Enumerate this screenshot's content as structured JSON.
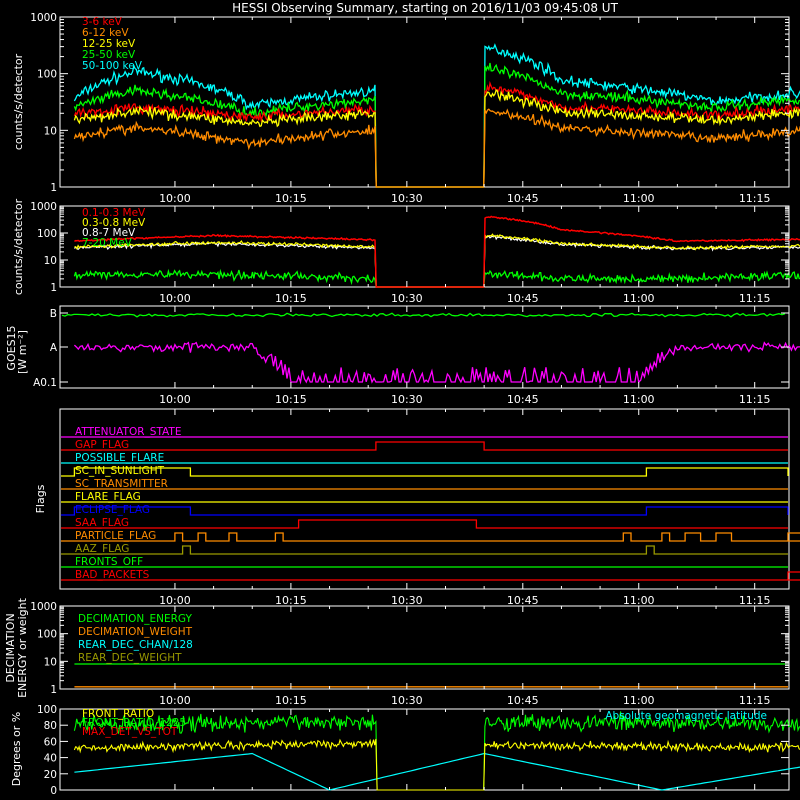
{
  "title": "HESSI Observing Summary, starting on 2016/11/03 09:45:08 UT",
  "time_ticks": [
    "10:00",
    "10:15",
    "10:30",
    "10:45",
    "11:00",
    "11:15"
  ],
  "colors": {
    "red": "#ff0000",
    "orange": "#ff8c00",
    "yellow": "#ffff00",
    "green": "#00ff00",
    "cyan": "#00ffff",
    "magenta": "#ff00ff",
    "blue": "#0000ff",
    "olive": "#9a9a00",
    "white": "#ffffff",
    "black": "#000000"
  },
  "chart_data": [
    {
      "type": "line",
      "ylabel": "counts/s/detector",
      "yscale": "log",
      "ylim": [
        1,
        1000
      ],
      "ytick_labels": [
        "1",
        "10",
        "100",
        "1000"
      ],
      "gaps": [
        [
          "10:26",
          "10:40"
        ]
      ],
      "series": [
        {
          "name": "3-6 keV",
          "color": "red",
          "approx": {
            "x": [
              "09:47",
              "09:55",
              "10:10",
              "10:26",
              "10:41",
              "10:50",
              "11:10",
              "11:25"
            ],
            "y": [
              20,
              25,
              17,
              24,
              55,
              26,
              18,
              27
            ]
          }
        },
        {
          "name": "6-12 keV",
          "color": "orange",
          "approx": {
            "x": [
              "09:47",
              "09:55",
              "10:10",
              "10:26",
              "10:41",
              "10:50",
              "11:10",
              "11:25"
            ],
            "y": [
              8,
              11,
              6,
              10,
              22,
              11,
              7,
              11
            ]
          }
        },
        {
          "name": "12-25 keV",
          "color": "yellow",
          "approx": {
            "x": [
              "09:47",
              "09:55",
              "10:10",
              "10:26",
              "10:41",
              "10:50",
              "11:10",
              "11:25"
            ],
            "y": [
              15,
              22,
              13,
              20,
              45,
              21,
              15,
              23
            ]
          }
        },
        {
          "name": "25-50 keV",
          "color": "green",
          "approx": {
            "x": [
              "09:47",
              "09:55",
              "10:10",
              "10:26",
              "10:41",
              "10:50",
              "11:10",
              "11:25"
            ],
            "y": [
              25,
              50,
              20,
              35,
              120,
              45,
              25,
              40
            ]
          }
        },
        {
          "name": "50-100 keV",
          "color": "cyan",
          "approx": {
            "x": [
              "09:47",
              "09:55",
              "10:10",
              "10:26",
              "10:41",
              "10:50",
              "11:10",
              "11:25"
            ],
            "y": [
              35,
              110,
              27,
              50,
              280,
              75,
              32,
              50
            ]
          }
        }
      ]
    },
    {
      "type": "line",
      "ylabel": "counts/s/detector",
      "yscale": "log",
      "ylim": [
        1,
        1000
      ],
      "ytick_labels": [
        "1",
        "10",
        "100",
        "1000"
      ],
      "gaps": [
        [
          "10:26",
          "10:40"
        ]
      ],
      "series": [
        {
          "name": "0.1-0.3 MeV",
          "color": "red",
          "approx": {
            "x": [
              "09:47",
              "10:05",
              "10:26",
              "10:41",
              "10:50",
              "11:05",
              "11:25"
            ],
            "y": [
              50,
              80,
              55,
              400,
              130,
              50,
              60
            ]
          }
        },
        {
          "name": "0.3-0.8 MeV",
          "color": "yellow",
          "approx": {
            "x": [
              "09:47",
              "10:05",
              "10:26",
              "10:41",
              "10:50",
              "11:05",
              "11:25"
            ],
            "y": [
              30,
              45,
              30,
              80,
              40,
              28,
              35
            ]
          }
        },
        {
          "name": "0.8-7 MeV",
          "color": "white",
          "approx": {
            "x": [
              "09:47",
              "10:05",
              "10:26",
              "10:41",
              "10:50",
              "11:05",
              "11:25"
            ],
            "y": [
              28,
              40,
              28,
              70,
              38,
              26,
              32
            ]
          }
        },
        {
          "name": "7-20 MeV",
          "color": "green",
          "approx": {
            "x": [
              "09:47",
              "10:05",
              "10:26",
              "10:41",
              "10:50",
              "11:05",
              "11:25"
            ],
            "y": [
              3,
              3,
              2,
              3,
              2,
              2,
              3
            ]
          }
        }
      ]
    },
    {
      "type": "line",
      "ylabel": "GOES15",
      "yunit": "[W m⁻²]",
      "yscale": "log",
      "ytick_labels": [
        "A0.1",
        "A",
        "B"
      ],
      "series": [
        {
          "color": "green",
          "approx": {
            "x": [
              "09:47",
              "11:27"
            ],
            "y": [
              "B",
              "B"
            ]
          }
        },
        {
          "color": "magenta",
          "approx": {
            "x": [
              "09:47",
              "10:10",
              "10:15",
              "10:30",
              "10:45",
              "11:00",
              "11:05",
              "11:27"
            ],
            "y": [
              "A",
              "A",
              "A0.1",
              "A0.1",
              "A0.1",
              "A0.1",
              "A",
              "A"
            ]
          }
        }
      ]
    },
    {
      "type": "step",
      "ylabel": "Flags",
      "flags": [
        {
          "name": "ATTENUATOR_STATE",
          "color": "magenta",
          "on": []
        },
        {
          "name": "GAP_FLAG",
          "color": "red",
          "on": [
            [
              "10:26",
              "10:40"
            ]
          ]
        },
        {
          "name": "POSSIBLE_FLARE",
          "color": "cyan",
          "on": []
        },
        {
          "name": "SC_IN_SUNLIGHT",
          "color": "yellow",
          "on": [
            [
              "09:47",
              "10:02"
            ],
            [
              "11:01",
              "11:27"
            ]
          ],
          "note": "level up except the night interval"
        },
        {
          "name": "SC_TRANSMITTER",
          "color": "orange",
          "on": []
        },
        {
          "name": "FLARE_FLAG",
          "color": "yellow",
          "on": []
        },
        {
          "name": "ECLIPSE_FLAG",
          "color": "blue",
          "on": [
            [
              "09:47",
              "10:02"
            ],
            [
              "11:01",
              "11:27"
            ]
          ]
        },
        {
          "name": "SAA_FLAG",
          "color": "red",
          "on": [
            [
              "10:16",
              "10:39"
            ]
          ]
        },
        {
          "name": "PARTICLE_FLAG",
          "color": "orange",
          "on": [
            [
              "10:00",
              "10:01"
            ],
            [
              "10:03",
              "10:04"
            ],
            [
              "10:07",
              "10:08"
            ],
            [
              "10:13",
              "10:14"
            ],
            [
              "10:58",
              "10:59"
            ],
            [
              "11:03",
              "11:04"
            ],
            [
              "11:06",
              "11:08"
            ],
            [
              "11:10",
              "11:12"
            ],
            [
              "11:21",
              "11:23"
            ],
            [
              "11:24",
              "11:25"
            ]
          ]
        },
        {
          "name": "AAZ_FLAG",
          "color": "olive",
          "on": [
            [
              "10:01",
              "10:02"
            ],
            [
              "11:01",
              "11:02"
            ]
          ]
        },
        {
          "name": "FRONTS_OFF",
          "color": "green",
          "on": []
        },
        {
          "name": "BAD_PACKETS",
          "color": "red",
          "on": [
            [
              "11:23",
              "11:23"
            ]
          ]
        }
      ]
    },
    {
      "type": "line",
      "ylabel": "DECIMATION",
      "ylabel2": "ENERGY or weight",
      "yscale": "log",
      "ylim": [
        1,
        1000
      ],
      "ytick_labels": [
        "1",
        "10",
        "100",
        "1000"
      ],
      "series": [
        {
          "name": "DECIMATION_ENERGY",
          "color": "green",
          "approx": {
            "x": [
              "09:47",
              "11:27"
            ],
            "y": [
              8,
              8
            ]
          }
        },
        {
          "name": "DECIMATION_WEIGHT",
          "color": "orange",
          "approx": {
            "x": [
              "09:47",
              "11:27"
            ],
            "y": [
              1.2,
              1.2
            ]
          }
        },
        {
          "name": "REAR_DEC_CHAN/128",
          "color": "cyan",
          "approx": {
            "x": [],
            "y": []
          }
        },
        {
          "name": "REAR_DEC_WEIGHT",
          "color": "olive",
          "approx": {
            "x": [],
            "y": []
          }
        }
      ]
    },
    {
      "type": "line",
      "ylabel": "Degrees or %",
      "ylim": [
        0,
        100
      ],
      "ytick_labels": [
        "0",
        "20",
        "40",
        "60",
        "80",
        "100"
      ],
      "annotation": "Absolute geomagnetic latitude",
      "series": [
        {
          "name": "FRONT_RATIO",
          "color": "yellow",
          "approx": {
            "x": [
              "09:47",
              "10:26",
              "10:26",
              "10:40",
              "10:40",
              "11:27"
            ],
            "y": [
              52,
              58,
              0,
              0,
              55,
              52
            ]
          }
        },
        {
          "name": "FRONT_RATIO_1225",
          "color": "green",
          "approx": {
            "x": [
              "09:47",
              "10:26",
              "10:26",
              "10:40",
              "10:40",
              "11:27"
            ],
            "y": [
              80,
              85,
              0,
              0,
              85,
              80
            ]
          }
        },
        {
          "name": "MAX_DET_VS_TOT",
          "color": "red",
          "approx": {
            "x": [],
            "y": []
          }
        },
        {
          "name": "Absolute geomagnetic latitude",
          "color": "cyan",
          "approx": {
            "x": [
              "09:47",
              "10:10",
              "10:20",
              "10:40",
              "11:03",
              "11:27"
            ],
            "y": [
              22,
              45,
              0,
              45,
              0,
              38
            ]
          }
        }
      ]
    }
  ]
}
